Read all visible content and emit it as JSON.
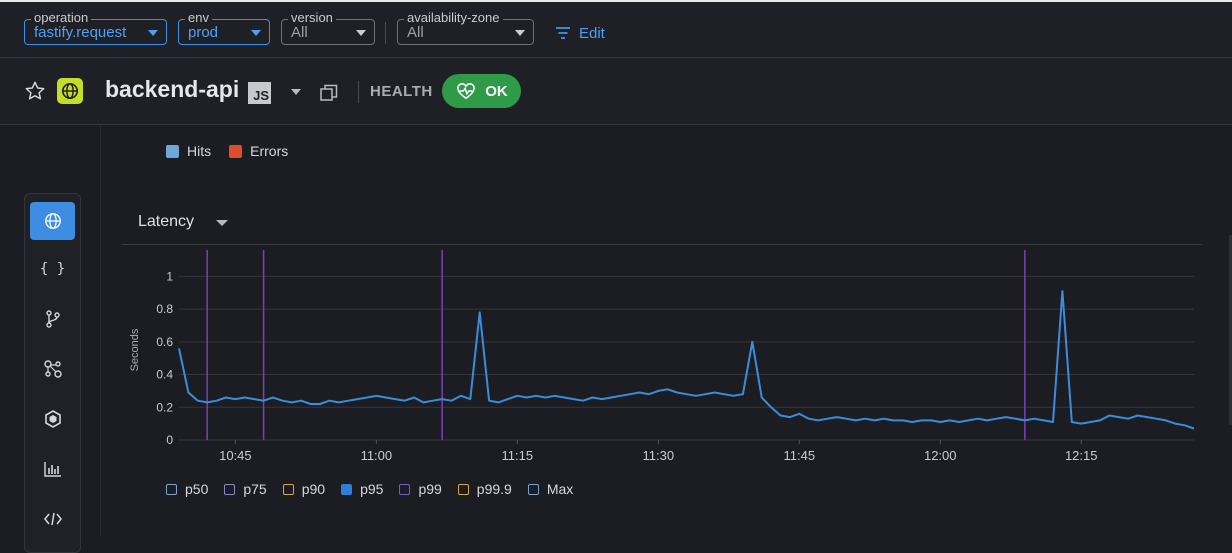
{
  "filters": [
    {
      "label": "operation",
      "value": "fastify.request",
      "active": true
    },
    {
      "label": "env",
      "value": "prod",
      "active": true
    },
    {
      "label": "version",
      "value": "All",
      "active": false
    },
    {
      "label": "availability-zone",
      "value": "All",
      "active": false
    }
  ],
  "edit_label": "Edit",
  "header": {
    "service_name": "backend-api",
    "language_badge": "JS",
    "health_label": "HEALTH",
    "health_status": "OK"
  },
  "sidenav": {
    "items": [
      {
        "icon": "globe-icon",
        "glyph": "",
        "active": true
      },
      {
        "icon": "braces-icon",
        "glyph": "{ }",
        "active": false
      },
      {
        "icon": "git-branch-icon",
        "glyph": "",
        "active": false
      },
      {
        "icon": "network-icon",
        "glyph": "",
        "active": false
      },
      {
        "icon": "hexagon-icon",
        "glyph": "",
        "active": false
      },
      {
        "icon": "bar-chart-icon",
        "glyph": "",
        "active": false
      },
      {
        "icon": "code-compare-icon",
        "glyph": "",
        "active": false
      }
    ]
  },
  "hits_errors_legend": [
    {
      "label": "Hits",
      "color": "#6fa6d8"
    },
    {
      "label": "Errors",
      "color": "#e04d2b"
    }
  ],
  "latency_title": "Latency",
  "percentile_legend": [
    {
      "label": "p50",
      "color": "#7aa2c8",
      "filled": false
    },
    {
      "label": "p75",
      "color": "#8f86c8",
      "filled": false
    },
    {
      "label": "p90",
      "color": "#d9a44a",
      "filled": false
    },
    {
      "label": "p95",
      "color": "#2f7fd6",
      "filled": true
    },
    {
      "label": "p99",
      "color": "#7b58c9",
      "filled": false
    },
    {
      "label": "p99.9",
      "color": "#d9a44a",
      "filled": false
    },
    {
      "label": "Max",
      "color": "#7aa2c8",
      "filled": false
    }
  ],
  "colors": {
    "accent": "#3c8ee6",
    "health_ok": "#2f9a48",
    "deploy_marker": "#7a3fb8",
    "series_line": "#3a8ddd"
  },
  "chart_data": {
    "type": "line",
    "title": "",
    "xlabel": "",
    "ylabel": "Seconds",
    "ylim": [
      0,
      1.1
    ],
    "yticks": [
      0,
      0.2,
      0.4,
      0.6,
      0.8,
      1
    ],
    "ytick_labels": [
      "0",
      "0.2",
      "0.4",
      "0.6",
      "0.8",
      "1"
    ],
    "xlim": [
      "10:39",
      "12:27"
    ],
    "xticks": [
      "10:45",
      "11:00",
      "11:15",
      "11:30",
      "11:45",
      "12:00",
      "12:15"
    ],
    "grid": true,
    "deploy_markers": [
      "10:42",
      "10:48",
      "11:07",
      "12:09"
    ],
    "series": [
      {
        "name": "p95",
        "x": [
          "10:39",
          "10:40",
          "10:41",
          "10:42",
          "10:43",
          "10:44",
          "10:45",
          "10:46",
          "10:47",
          "10:48",
          "10:49",
          "10:50",
          "10:51",
          "10:52",
          "10:53",
          "10:54",
          "10:55",
          "10:56",
          "10:57",
          "10:58",
          "10:59",
          "11:00",
          "11:01",
          "11:02",
          "11:03",
          "11:04",
          "11:05",
          "11:06",
          "11:07",
          "11:08",
          "11:09",
          "11:10",
          "11:11",
          "11:12",
          "11:13",
          "11:14",
          "11:15",
          "11:16",
          "11:17",
          "11:18",
          "11:19",
          "11:20",
          "11:21",
          "11:22",
          "11:23",
          "11:24",
          "11:25",
          "11:26",
          "11:27",
          "11:28",
          "11:29",
          "11:30",
          "11:31",
          "11:32",
          "11:33",
          "11:34",
          "11:35",
          "11:36",
          "11:37",
          "11:38",
          "11:39",
          "11:40",
          "11:41",
          "11:42",
          "11:43",
          "11:44",
          "11:45",
          "11:46",
          "11:47",
          "11:48",
          "11:49",
          "11:50",
          "11:51",
          "11:52",
          "11:53",
          "11:54",
          "11:55",
          "11:56",
          "11:57",
          "11:58",
          "11:59",
          "12:00",
          "12:01",
          "12:02",
          "12:03",
          "12:04",
          "12:05",
          "12:06",
          "12:07",
          "12:08",
          "12:09",
          "12:10",
          "12:11",
          "12:12",
          "12:13",
          "12:14",
          "12:15",
          "12:16",
          "12:17",
          "12:18",
          "12:19",
          "12:20",
          "12:21",
          "12:22",
          "12:23",
          "12:24",
          "12:25",
          "12:26",
          "12:27"
        ],
        "values": [
          0.56,
          0.29,
          0.24,
          0.23,
          0.24,
          0.26,
          0.25,
          0.26,
          0.25,
          0.24,
          0.26,
          0.24,
          0.23,
          0.24,
          0.22,
          0.22,
          0.24,
          0.23,
          0.24,
          0.25,
          0.26,
          0.27,
          0.26,
          0.25,
          0.24,
          0.26,
          0.23,
          0.24,
          0.25,
          0.24,
          0.27,
          0.25,
          0.78,
          0.24,
          0.23,
          0.25,
          0.27,
          0.26,
          0.27,
          0.26,
          0.27,
          0.26,
          0.25,
          0.24,
          0.26,
          0.25,
          0.26,
          0.27,
          0.28,
          0.29,
          0.28,
          0.3,
          0.31,
          0.29,
          0.28,
          0.27,
          0.28,
          0.29,
          0.28,
          0.27,
          0.28,
          0.6,
          0.26,
          0.2,
          0.15,
          0.14,
          0.16,
          0.13,
          0.12,
          0.13,
          0.14,
          0.13,
          0.12,
          0.13,
          0.12,
          0.13,
          0.12,
          0.12,
          0.11,
          0.12,
          0.12,
          0.11,
          0.12,
          0.11,
          0.12,
          0.13,
          0.12,
          0.13,
          0.14,
          0.13,
          0.12,
          0.13,
          0.12,
          0.11,
          0.91,
          0.11,
          0.1,
          0.11,
          0.12,
          0.15,
          0.14,
          0.13,
          0.15,
          0.14,
          0.13,
          0.12,
          0.1,
          0.09,
          0.07
        ]
      }
    ]
  }
}
